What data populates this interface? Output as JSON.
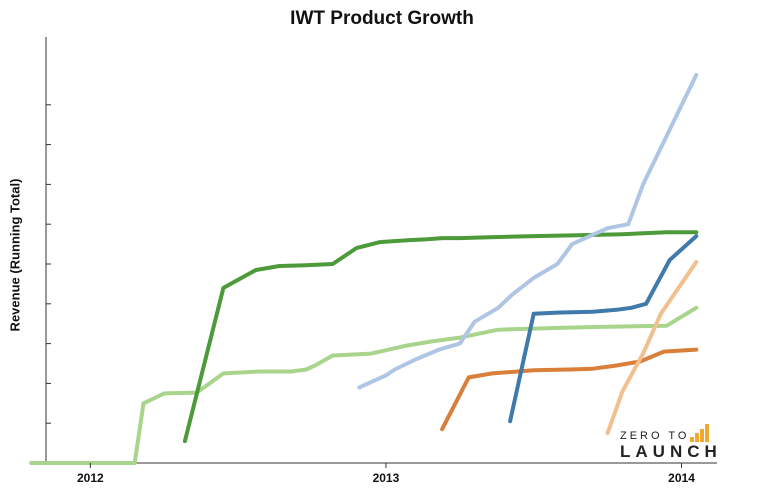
{
  "title": "IWT Product Growth",
  "ylabel": "Revenue (Running Total)",
  "logo": {
    "line1": "ZERO TO",
    "line2": "LAUNCH",
    "accent": "#f0a830"
  },
  "chart_data": {
    "type": "line",
    "title": "IWT Product Growth",
    "xlabel": "",
    "ylabel": "Revenue (Running Total)",
    "x_ticks": [
      "2012",
      "2013",
      "2014"
    ],
    "xlim": [
      2011.85,
      2014.12
    ],
    "ylim": [
      0,
      10
    ],
    "grid": false,
    "series": [
      {
        "color": "#a8d48c",
        "x": [
          2011.8,
          2011.95,
          2012.02,
          2012.09,
          2012.15,
          2012.18,
          2012.25,
          2012.36,
          2012.45,
          2012.57,
          2012.68,
          2012.73,
          2012.76,
          2012.82,
          2012.95,
          2013.07,
          2013.15,
          2013.25,
          2013.38,
          2013.6,
          2013.73,
          2013.95,
          2014.05
        ],
        "y": [
          0,
          0,
          0,
          0,
          0,
          1.5,
          1.75,
          1.77,
          2.25,
          2.3,
          2.3,
          2.35,
          2.45,
          2.7,
          2.75,
          2.95,
          3.05,
          3.15,
          3.35,
          3.4,
          3.42,
          3.45,
          3.9
        ]
      },
      {
        "color": "#4c9a3a",
        "x": [
          2012.32,
          2012.45,
          2012.56,
          2012.64,
          2012.73,
          2012.82,
          2012.9,
          2012.98,
          2013.08,
          2013.14,
          2013.19,
          2013.25,
          2013.35,
          2013.5,
          2013.65,
          2013.8,
          2013.95,
          2014.05
        ],
        "y": [
          0.55,
          4.4,
          4.85,
          4.95,
          4.97,
          5.0,
          5.4,
          5.55,
          5.6,
          5.62,
          5.65,
          5.65,
          5.67,
          5.7,
          5.72,
          5.75,
          5.8,
          5.8
        ]
      },
      {
        "color": "#afc5e4",
        "x": [
          2012.91,
          2013.0,
          2013.03,
          2013.1,
          2013.18,
          2013.25,
          2013.3,
          2013.38,
          2013.43,
          2013.5,
          2013.58,
          2013.63,
          2013.69,
          2013.75,
          2013.82,
          2013.87,
          2014.05
        ],
        "y": [
          1.9,
          2.2,
          2.35,
          2.6,
          2.85,
          3.0,
          3.55,
          3.9,
          4.25,
          4.65,
          5.0,
          5.5,
          5.7,
          5.9,
          6.0,
          7.0,
          9.75
        ]
      },
      {
        "color": "#d97f3a",
        "x": [
          2013.19,
          2013.28,
          2013.36,
          2013.5,
          2013.62,
          2013.7,
          2013.78,
          2013.86,
          2013.94,
          2014.05
        ],
        "y": [
          0.85,
          2.15,
          2.25,
          2.33,
          2.35,
          2.37,
          2.45,
          2.55,
          2.8,
          2.85
        ]
      },
      {
        "color": "#3f7aab",
        "x": [
          2013.42,
          2013.5,
          2013.58,
          2013.7,
          2013.78,
          2013.83,
          2013.88,
          2013.96,
          2014.05
        ],
        "y": [
          1.05,
          3.75,
          3.78,
          3.8,
          3.85,
          3.9,
          4.0,
          5.1,
          5.7
        ]
      },
      {
        "color": "#f2c08e",
        "x": [
          2013.75,
          2013.8,
          2013.87,
          2013.93,
          2014.05
        ],
        "y": [
          0.75,
          1.8,
          2.75,
          3.75,
          5.05
        ]
      }
    ]
  }
}
